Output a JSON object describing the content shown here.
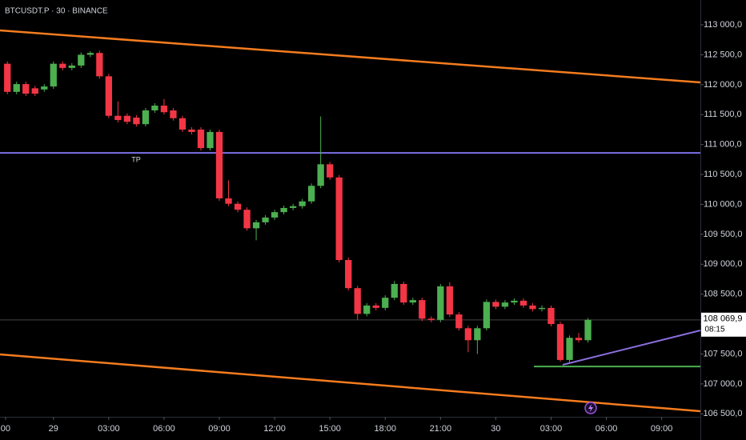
{
  "chart_data": {
    "type": "candlestick",
    "title": "BTCUSDT.P · 30 · BINANCE",
    "x": [
      -2.5,
      -2,
      -1.5,
      -1,
      -0.5,
      0,
      0.5,
      1,
      1.5,
      2,
      2.5,
      3,
      3.5,
      4,
      4.5,
      5,
      5.5,
      6,
      6.5,
      7,
      7.5,
      8,
      8.5,
      9,
      9.5,
      10,
      10.5,
      11,
      11.5,
      12,
      12.5,
      13,
      13.5,
      14,
      14.5,
      15,
      15.5,
      16,
      16.5,
      17,
      17.5,
      18,
      18.5,
      19,
      19.5,
      20,
      20.5,
      21,
      21.5,
      22,
      22.5,
      23,
      23.5,
      24,
      24.5,
      25,
      25.5,
      26,
      26.5,
      27,
      27.5,
      28,
      28.5,
      29
    ],
    "open": [
      112350,
      111880,
      112010,
      111940,
      111920,
      111970,
      112350,
      112280,
      112320,
      112500,
      112530,
      112140,
      111480,
      111480,
      111450,
      111340,
      111570,
      111650,
      111570,
      111440,
      111250,
      111250,
      110940,
      111210,
      110100,
      110010,
      109910,
      109600,
      109700,
      109780,
      109870,
      109940,
      109970,
      110050,
      110310,
      110670,
      110450,
      109070,
      108600,
      108170,
      108310,
      108270,
      108440,
      108670,
      108360,
      108400,
      108090,
      108070,
      108630,
      108160,
      107930,
      107730,
      107930,
      108370,
      108290,
      108360,
      108390,
      108310,
      108250,
      108270,
      108000,
      107400,
      107770,
      107730
    ],
    "high": [
      112390,
      112050,
      112050,
      111980,
      112010,
      112390,
      112390,
      112360,
      112540,
      112560,
      112570,
      112180,
      111720,
      111520,
      111490,
      111610,
      111690,
      111760,
      111610,
      111480,
      111290,
      111290,
      111250,
      111250,
      110400,
      110050,
      109950,
      109740,
      109820,
      109910,
      109980,
      110010,
      110090,
      110350,
      111470,
      110710,
      110490,
      109110,
      108640,
      108350,
      108350,
      108480,
      108720,
      108710,
      108440,
      108440,
      108130,
      108670,
      108700,
      108200,
      107970,
      107970,
      108410,
      108410,
      108400,
      108430,
      108430,
      108350,
      108310,
      108310,
      108040,
      107810,
      107850,
      108100
    ],
    "low": [
      111840,
      111840,
      111810,
      111810,
      111880,
      111930,
      112240,
      112240,
      112280,
      112460,
      112100,
      111440,
      111370,
      111340,
      111300,
      111300,
      111530,
      111500,
      111400,
      111210,
      111170,
      110900,
      110900,
      110060,
      109970,
      109870,
      109560,
      109400,
      109660,
      109740,
      109830,
      109900,
      109930,
      110010,
      110270,
      110410,
      109030,
      108560,
      108070,
      108130,
      108230,
      108230,
      108400,
      108320,
      108320,
      108050,
      108030,
      108030,
      108120,
      107890,
      107530,
      107500,
      107890,
      108250,
      108250,
      108320,
      108270,
      108210,
      108210,
      107960,
      107370,
      107360,
      107690,
      107690
    ],
    "close": [
      111880,
      112010,
      111850,
      111850,
      111970,
      112350,
      112280,
      112320,
      112500,
      112530,
      112140,
      111480,
      111410,
      111380,
      111340,
      111570,
      111650,
      111540,
      111440,
      111250,
      111210,
      110940,
      111210,
      110100,
      110010,
      109910,
      109600,
      109700,
      109780,
      109870,
      109940,
      109970,
      110050,
      110310,
      110670,
      110450,
      109070,
      108600,
      108170,
      108310,
      108270,
      108440,
      108670,
      108360,
      108400,
      108090,
      108070,
      108630,
      108160,
      107930,
      107730,
      107930,
      108370,
      108290,
      108360,
      108390,
      108310,
      108250,
      108270,
      108000,
      107400,
      107770,
      107730,
      108069.9
    ],
    "up_color": "#4caf50",
    "down_color": "#f23645",
    "xlim": [
      -2.9,
      35.1
    ],
    "ylim": [
      106450,
      113415
    ],
    "xticks": [
      {
        "value": -2.6,
        "label": "00"
      },
      {
        "value": 0,
        "label": "29"
      },
      {
        "value": 3,
        "label": "03:00"
      },
      {
        "value": 6,
        "label": "06:00"
      },
      {
        "value": 9,
        "label": "09:00"
      },
      {
        "value": 12,
        "label": "12:00"
      },
      {
        "value": 15,
        "label": "15:00"
      },
      {
        "value": 18,
        "label": "18:00"
      },
      {
        "value": 21,
        "label": "21:00"
      },
      {
        "value": 24,
        "label": "30"
      },
      {
        "value": 27,
        "label": "03:00"
      },
      {
        "value": 30,
        "label": "06:00"
      },
      {
        "value": 33,
        "label": "09:00"
      }
    ],
    "yticks": [
      {
        "value": 113000,
        "label": "113 000,0"
      },
      {
        "value": 112500,
        "label": "112 500,0"
      },
      {
        "value": 112000,
        "label": "112 000,0"
      },
      {
        "value": 111500,
        "label": "111 500,0"
      },
      {
        "value": 111000,
        "label": "111 000,0"
      },
      {
        "value": 110500,
        "label": "110 500,0"
      },
      {
        "value": 110000,
        "label": "110 000,0"
      },
      {
        "value": 109500,
        "label": "109 500,0"
      },
      {
        "value": 109000,
        "label": "109 000,0"
      },
      {
        "value": 108500,
        "label": "108 500,0"
      },
      {
        "value": 108000,
        "label": "108 000,0"
      },
      {
        "value": 107500,
        "label": "107 500,0"
      },
      {
        "value": 107000,
        "label": "107 000,0"
      },
      {
        "value": 106500,
        "label": "106 500,0"
      }
    ],
    "horizontal_lines": [
      {
        "value": 110860,
        "label": "TP",
        "color": "#7b6fe8"
      }
    ],
    "support_line": {
      "value": 107290,
      "color": "#4caf50"
    },
    "last_price": {
      "value": 108069.9,
      "label": "108 069,9"
    },
    "countdown": "08:15"
  }
}
